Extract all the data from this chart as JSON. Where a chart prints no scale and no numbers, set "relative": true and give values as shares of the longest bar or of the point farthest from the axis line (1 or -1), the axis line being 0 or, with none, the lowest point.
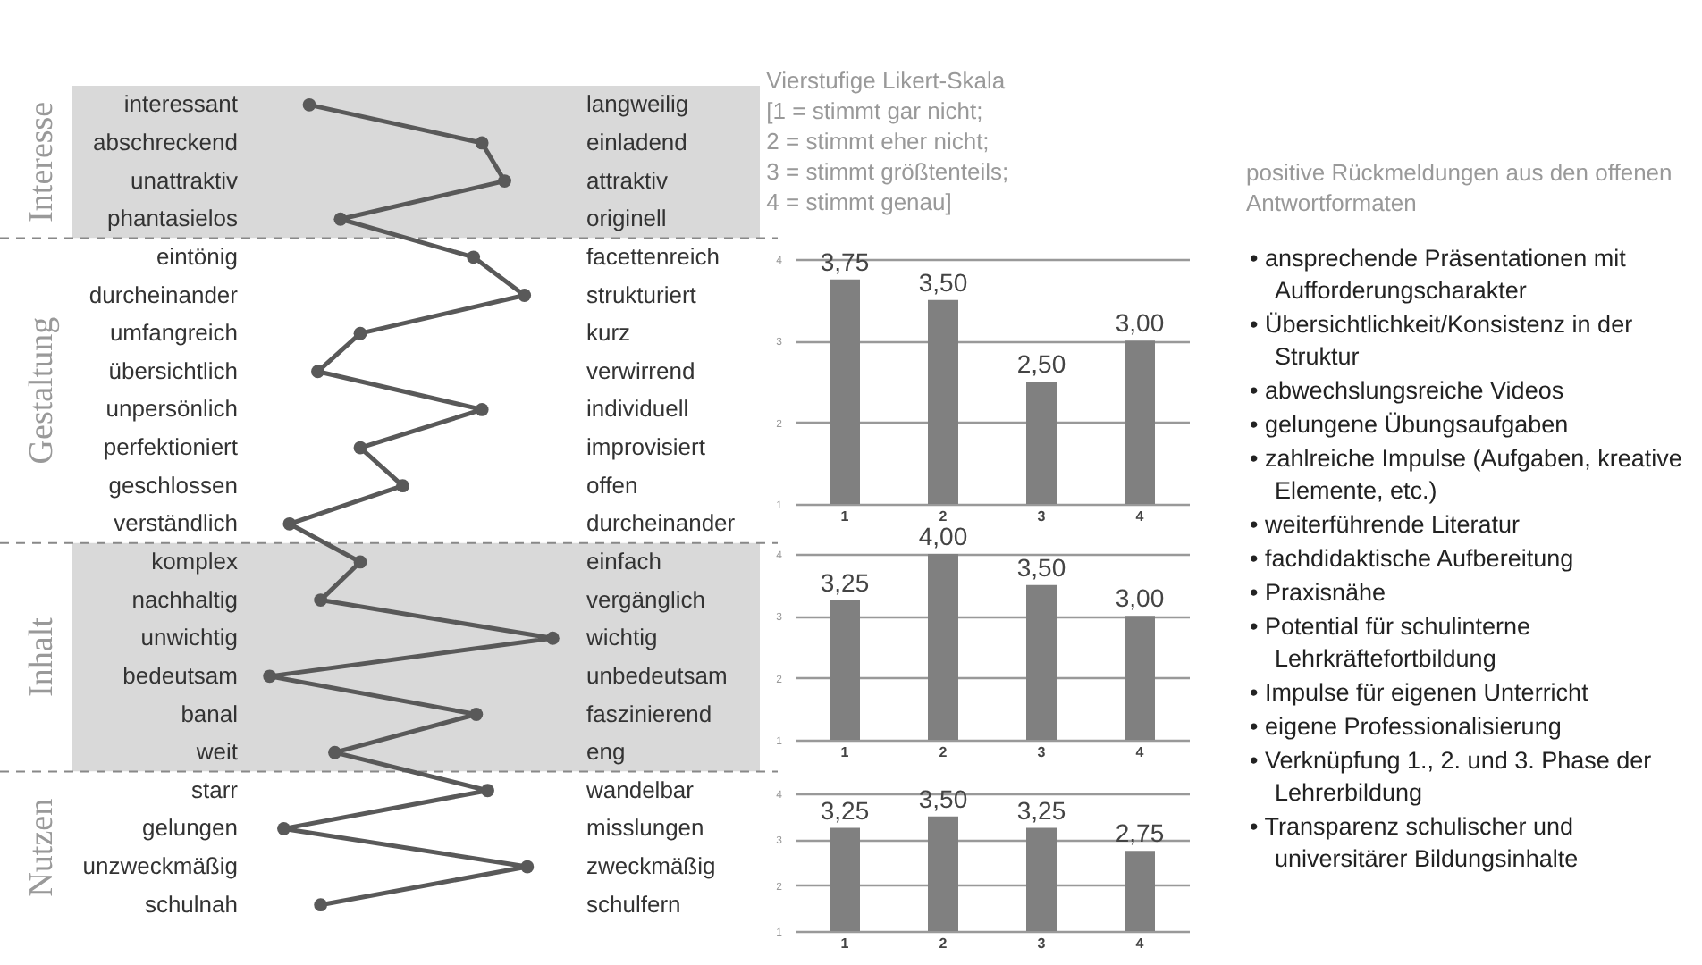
{
  "chart_data": [
    {
      "type": "line",
      "orientation": "horizontal",
      "relative": true,
      "marker": "circle",
      "categories": [
        "interessant",
        "abschreckend",
        "unattraktiv",
        "phantasielos",
        "eintönig",
        "durcheinander",
        "umfangreich",
        "übersichtlich",
        "unpersönlich",
        "perfektioniert",
        "geschlossen",
        "verständlich",
        "komplex",
        "nachhaltig",
        "unwichtig",
        "bedeutsam",
        "banal",
        "weit",
        "starr",
        "gelungen",
        "unzweckmäßig",
        "schulnah"
      ],
      "y2_categories": [
        "langweilig",
        "einladend",
        "attraktiv",
        "originell",
        "facettenreich",
        "strukturiert",
        "kurz",
        "verwirrend",
        "individuell",
        "improvisiert",
        "offen",
        "durcheinander",
        "einfach",
        "vergänglich",
        "wichtig",
        "unbedeutsam",
        "faszinierend",
        "eng",
        "wandelbar",
        "misslungen",
        "zweckmäßig",
        "schulfern"
      ],
      "series": [
        {
          "color": "#595959",
          "values": [
            0.14,
            0.75,
            0.83,
            0.25,
            0.72,
            0.9,
            0.32,
            0.17,
            0.75,
            0.32,
            0.47,
            0.07,
            0.32,
            0.18,
            1,
            0,
            0.73,
            0.23,
            0.77,
            0.05,
            0.91,
            0.18
          ]
        }
      ],
      "bands": [
        {
          "axis": "y",
          "from": "interessant",
          "to": "phantasielos",
          "label": "Interesse",
          "color": "#d9d9d9"
        },
        {
          "axis": "y",
          "from": "eintönig",
          "to": "verständlich",
          "label": "Gestaltung",
          "color": "#ffffff"
        },
        {
          "axis": "y",
          "from": "komplex",
          "to": "weit",
          "label": "Inhalt",
          "color": "#d9d9d9"
        },
        {
          "axis": "y",
          "from": "starr",
          "to": "schulnah",
          "label": "Nutzen",
          "color": "#ffffff"
        }
      ]
    },
    {
      "type": "bar",
      "title": "Vierstufige Likert-Skala\n[1 = stimmt gar nicht;\n2 = stimmt eher nicht;\n3 = stimmt größtenteils;\n4 = stimmt genau]",
      "categories": [
        "1",
        "2",
        "3",
        "4"
      ],
      "values": [
        3.75,
        3.5,
        2.5,
        3
      ],
      "value_labels": [
        "3,75",
        "3,50",
        "2,50",
        "3,00"
      ],
      "color": "#808080",
      "ylim": [
        1,
        4
      ],
      "yticks": [
        1,
        2,
        3,
        4
      ],
      "grid": "y"
    },
    {
      "type": "bar",
      "categories": [
        "1",
        "2",
        "3",
        "4"
      ],
      "values": [
        3.25,
        4,
        3.5,
        3
      ],
      "value_labels": [
        "3,25",
        "4,00",
        "3,50",
        "3,00"
      ],
      "color": "#808080",
      "ylim": [
        1,
        4
      ],
      "yticks": [
        1,
        2,
        3,
        4
      ],
      "grid": "y"
    },
    {
      "type": "bar",
      "categories": [
        "1",
        "2",
        "3",
        "4"
      ],
      "values": [
        3.25,
        3.5,
        3.25,
        2.75
      ],
      "value_labels": [
        "3,25",
        "3,50",
        "3,25",
        "2,75"
      ],
      "color": "#808080",
      "ylim": [
        1,
        4
      ],
      "yticks": [
        1,
        2,
        3,
        4
      ],
      "grid": "y"
    },
    {
      "type": "other",
      "title": "positive Rückmeldungen aus den offenen Antwortformaten",
      "annotations": [
        "• ansprechende Präsentationen mit Aufforderungscharakter",
        "• Übersichtlichkeit/Konsistenz in der Struktur",
        "• abwechslungsreiche Videos",
        "• gelungene Übungsaufgaben",
        "• zahlreiche Impulse (Aufgaben, kreative Elemente, etc.)",
        "• weiterführende Literatur",
        "• fachdidaktische Aufbereitung",
        "• Praxisnähe",
        "• Potential für schulinterne Lehrkräftefortbildung",
        "• Impulse für eigenen Unterricht",
        "• eigene Professionalisierung",
        "• Verknüpfung 1., 2. und 3. Phase der Lehrerbildung",
        "• Transparenz schulischer und universitärer Bildungsinhalte"
      ]
    }
  ]
}
